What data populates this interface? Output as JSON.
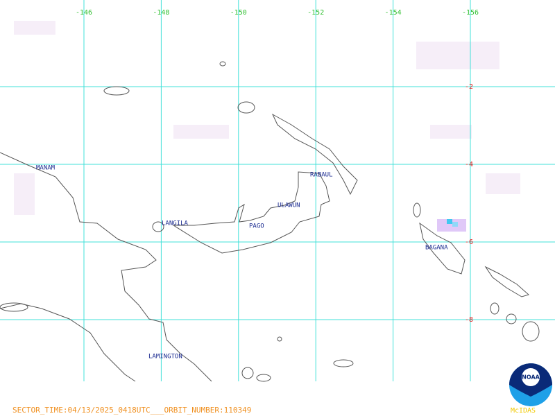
{
  "map": {
    "longitudes": [
      "-146",
      "-148",
      "-150",
      "-152",
      "-154",
      "-156"
    ],
    "latitudes": [
      "-2",
      "-4",
      "-6",
      "-8"
    ],
    "volcanoes": [
      "MANAM",
      "LANGILA",
      "ULAWUN",
      "RABAUL",
      "PAGO",
      "BAGANA",
      "LAMINGTON"
    ],
    "footer": "SECTOR_TIME:04/13/2025_0418UTC___ORBIT_NUMBER:110349",
    "logo": "NOAA",
    "software": "McIDAS"
  }
}
